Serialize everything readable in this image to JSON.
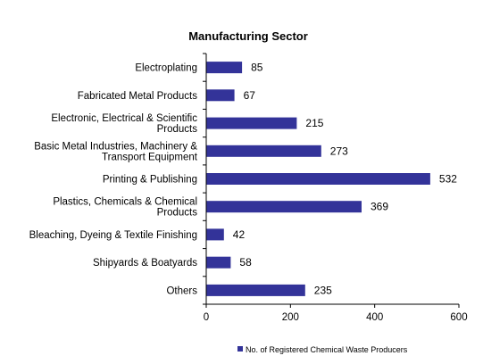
{
  "chart_data": {
    "type": "bar",
    "orientation": "horizontal",
    "title": "Manufacturing  Sector",
    "categories": [
      [
        "Electroplating"
      ],
      [
        "Fabricated Metal Products"
      ],
      [
        "Electronic, Electrical & Scientific",
        "Products"
      ],
      [
        "Basic Metal Industries, Machinery &",
        "Transport Equipment"
      ],
      [
        "Printing & Publishing"
      ],
      [
        "Plastics, Chemicals & Chemical",
        "Products"
      ],
      [
        "Bleaching, Dyeing & Textile Finishing"
      ],
      [
        "Shipyards & Boatyards"
      ],
      [
        "Others"
      ]
    ],
    "series": [
      {
        "name": "No. of Registered Chemical Waste Producers",
        "values": [
          85,
          67,
          215,
          273,
          532,
          369,
          42,
          58,
          235
        ]
      }
    ],
    "xlim": [
      0,
      600
    ],
    "xticks": [
      0,
      200,
      400,
      600
    ],
    "grid": false,
    "legend_position": "bottom",
    "bar_color": "#333399"
  }
}
